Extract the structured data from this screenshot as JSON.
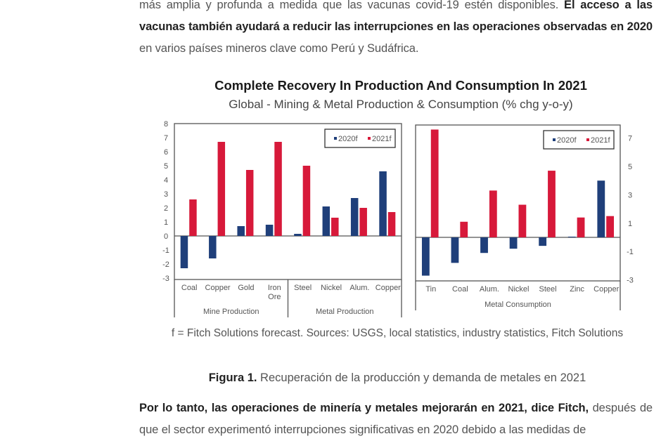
{
  "article": {
    "para1_plain_a": "más amplia y profunda a medida que las vacunas covid-19 estén disponibles. ",
    "para1_bold": "El acceso a las vacunas también ayudará a reducir las interrupciones en las operaciones observadas en 2020",
    "para1_plain_b": " en varios países mineros clave como Perú y Sudáfrica.",
    "para2_bold": "Por lo tanto, las operaciones de minería y metales mejorarán en 2021, dice Fitch,",
    "para2_plain": " después de que el sector experimentó interrupciones significativas en 2020 debido a las medidas de",
    "caption_bold": "Figura 1.",
    "caption_text": " Recuperación de la producción y demanda de metales en 2021"
  },
  "chart_data": [
    {
      "type": "bar",
      "title": "Complete Recovery In Production And Consumption In 2021",
      "subtitle": "Global - Mining & Metal Production & Consumption (% chg y-o-y)",
      "source": "f = Fitch Solutions forecast. Sources: USGS, local statistics, industry statistics, Fitch Solutions",
      "panel": "left",
      "categories": [
        "Coal",
        "Copper",
        "Gold",
        "Iron Ore",
        "Steel",
        "Nickel",
        "Alum.",
        "Copper"
      ],
      "groups": [
        {
          "label": "Mine Production",
          "categories": [
            "Coal",
            "Copper",
            "Gold",
            "Iron Ore"
          ]
        },
        {
          "label": "Metal Production",
          "categories": [
            "Steel",
            "Nickel",
            "Alum.",
            "Copper"
          ]
        }
      ],
      "series": [
        {
          "name": "2020f",
          "color": "#1f3f7a",
          "values": [
            -2.3,
            -1.6,
            0.7,
            0.8,
            0.15,
            2.1,
            2.7,
            4.6
          ]
        },
        {
          "name": "2021f",
          "color": "#d7193a",
          "values": [
            2.6,
            6.7,
            4.7,
            6.7,
            5.0,
            1.3,
            2.0,
            1.7
          ]
        }
      ],
      "ylim": [
        -3,
        8
      ],
      "yticks": [
        8,
        7,
        6,
        5,
        4,
        3,
        2,
        1,
        0,
        -1,
        -2,
        -3
      ],
      "yaxis_side": "left",
      "legend": "top-right"
    },
    {
      "type": "bar",
      "panel": "right",
      "categories": [
        "Tin",
        "Coal",
        "Alum.",
        "Nickel",
        "Steel",
        "Zinc",
        "Copper"
      ],
      "groups": [
        {
          "label": "Metal Consumption",
          "categories": [
            "Tin",
            "Coal",
            "Alum.",
            "Nickel",
            "Steel",
            "Zinc",
            "Copper"
          ]
        }
      ],
      "series": [
        {
          "name": "2020f",
          "color": "#1f3f7a",
          "values": [
            -2.7,
            -1.8,
            -1.1,
            -0.8,
            -0.6,
            0.05,
            4.0
          ]
        },
        {
          "name": "2021f",
          "color": "#d7193a",
          "values": [
            7.6,
            1.1,
            3.3,
            2.3,
            4.7,
            1.4,
            1.5
          ]
        }
      ],
      "ylim": [
        -3,
        7.8
      ],
      "yticks": [
        7,
        5,
        3,
        1,
        -1,
        -3
      ],
      "yaxis_side": "right",
      "legend": "top-right"
    }
  ]
}
